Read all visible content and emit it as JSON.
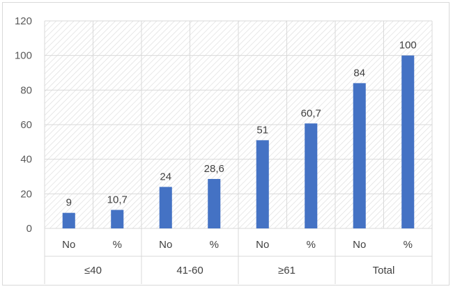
{
  "chart_data": {
    "type": "bar",
    "title": "",
    "xlabel": "",
    "ylabel": "",
    "ylim": [
      0,
      120
    ],
    "yticks": [
      0,
      20,
      40,
      60,
      80,
      100,
      120
    ],
    "grid": true,
    "legend": "none",
    "groups": [
      {
        "label": "≤40",
        "items": [
          {
            "label": "No",
            "value": 9,
            "data_label": "9"
          },
          {
            "label": "%",
            "value": 10.7,
            "data_label": "10,7"
          }
        ]
      },
      {
        "label": "41-60",
        "items": [
          {
            "label": "No",
            "value": 24,
            "data_label": "24"
          },
          {
            "label": "%",
            "value": 28.6,
            "data_label": "28,6"
          }
        ]
      },
      {
        "label": "≥61",
        "items": [
          {
            "label": "No",
            "value": 51,
            "data_label": "51"
          },
          {
            "label": "%",
            "value": 60.7,
            "data_label": "60,7"
          }
        ]
      },
      {
        "label": "Total",
        "items": [
          {
            "label": "No",
            "value": 84,
            "data_label": "84"
          },
          {
            "label": "%",
            "value": 100,
            "data_label": "100"
          }
        ]
      }
    ],
    "colors": {
      "bar": "#4472c4",
      "grid": "#d9d9d9",
      "hatch": "#dcdcdc",
      "text": "#404040",
      "tick_text": "#595959"
    }
  }
}
